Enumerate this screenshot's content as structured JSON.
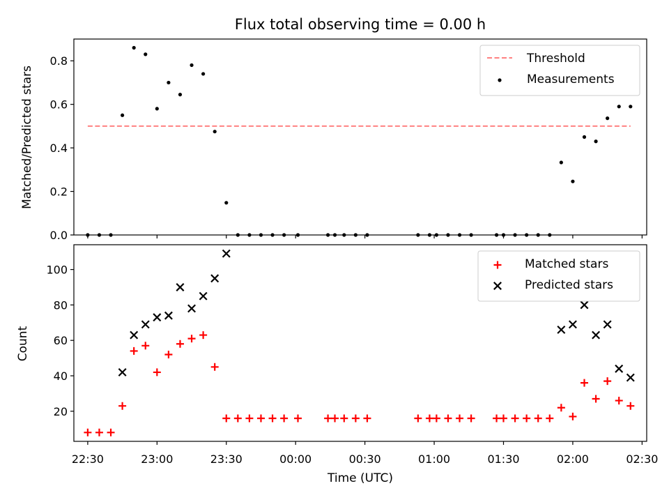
{
  "chart_data": [
    {
      "type": "scatter",
      "title": "Flux total observing time = 0.00 h",
      "xlabel": "",
      "ylabel": "Matched/Predicted stars",
      "xlim": [
        "22:24",
        "02:32"
      ],
      "ylim": [
        0,
        0.9
      ],
      "yticks": [
        0.0,
        0.2,
        0.4,
        0.6,
        0.8
      ],
      "ytick_labels": [
        "0.0",
        "0.2",
        "0.4",
        "0.6",
        "0.8"
      ],
      "legend_position": "top-right",
      "threshold": {
        "name": "Threshold",
        "y": 0.5,
        "x_range": [
          "22:30",
          "02:25"
        ],
        "color": "#ff8080",
        "style": "dashed"
      },
      "series": [
        {
          "name": "Measurements",
          "marker": "dot",
          "color": "#000000",
          "points": [
            [
              "22:30",
              0.0
            ],
            [
              "22:35",
              0.0
            ],
            [
              "22:40",
              0.0
            ],
            [
              "22:45",
              0.55
            ],
            [
              "22:50",
              0.86
            ],
            [
              "22:55",
              0.83
            ],
            [
              "23:00",
              0.58
            ],
            [
              "23:05",
              0.7
            ],
            [
              "23:10",
              0.645
            ],
            [
              "23:15",
              0.78
            ],
            [
              "23:20",
              0.74
            ],
            [
              "23:25",
              0.475
            ],
            [
              "23:30",
              0.148
            ],
            [
              "23:35",
              0.0
            ],
            [
              "23:40",
              0.0
            ],
            [
              "23:45",
              0.0
            ],
            [
              "23:50",
              0.0
            ],
            [
              "23:55",
              0.0
            ],
            [
              "00:01",
              0.0
            ],
            [
              "00:14",
              0.0
            ],
            [
              "00:17",
              0.0
            ],
            [
              "00:21",
              0.0
            ],
            [
              "00:26",
              0.0
            ],
            [
              "00:31",
              0.0
            ],
            [
              "00:53",
              0.0
            ],
            [
              "00:58",
              0.0
            ],
            [
              "01:01",
              0.0
            ],
            [
              "01:06",
              0.0
            ],
            [
              "01:11",
              0.0
            ],
            [
              "01:16",
              0.0
            ],
            [
              "01:27",
              0.0
            ],
            [
              "01:30",
              0.0
            ],
            [
              "01:35",
              0.0
            ],
            [
              "01:40",
              0.0
            ],
            [
              "01:45",
              0.0
            ],
            [
              "01:50",
              0.0
            ],
            [
              "01:55",
              0.333
            ],
            [
              "02:00",
              0.246
            ],
            [
              "02:05",
              0.45
            ],
            [
              "02:10",
              0.43
            ],
            [
              "02:15",
              0.536
            ],
            [
              "02:20",
              0.59
            ],
            [
              "02:25",
              0.59
            ]
          ]
        }
      ]
    },
    {
      "type": "scatter",
      "title": "",
      "xlabel": "Time (UTC)",
      "ylabel": "Count",
      "xlim": [
        "22:24",
        "02:32"
      ],
      "ylim": [
        3,
        114
      ],
      "yticks": [
        20,
        40,
        60,
        80,
        100
      ],
      "ytick_labels": [
        "20",
        "40",
        "60",
        "80",
        "100"
      ],
      "xticks": [
        "22:30",
        "23:00",
        "23:30",
        "00:00",
        "00:30",
        "01:00",
        "01:30",
        "02:00",
        "02:30"
      ],
      "legend_position": "top-right",
      "series": [
        {
          "name": "Matched stars",
          "marker": "plus",
          "color": "#ff0000",
          "points": [
            [
              "22:30",
              8
            ],
            [
              "22:35",
              8
            ],
            [
              "22:40",
              8
            ],
            [
              "22:45",
              23
            ],
            [
              "22:50",
              54
            ],
            [
              "22:55",
              57
            ],
            [
              "23:00",
              42
            ],
            [
              "23:05",
              52
            ],
            [
              "23:10",
              58
            ],
            [
              "23:15",
              61
            ],
            [
              "23:20",
              63
            ],
            [
              "23:25",
              45
            ],
            [
              "23:30",
              16
            ],
            [
              "23:35",
              16
            ],
            [
              "23:40",
              16
            ],
            [
              "23:45",
              16
            ],
            [
              "23:50",
              16
            ],
            [
              "23:55",
              16
            ],
            [
              "00:01",
              16
            ],
            [
              "00:14",
              16
            ],
            [
              "00:17",
              16
            ],
            [
              "00:21",
              16
            ],
            [
              "00:26",
              16
            ],
            [
              "00:31",
              16
            ],
            [
              "00:53",
              16
            ],
            [
              "00:58",
              16
            ],
            [
              "01:01",
              16
            ],
            [
              "01:06",
              16
            ],
            [
              "01:11",
              16
            ],
            [
              "01:16",
              16
            ],
            [
              "01:27",
              16
            ],
            [
              "01:30",
              16
            ],
            [
              "01:35",
              16
            ],
            [
              "01:40",
              16
            ],
            [
              "01:45",
              16
            ],
            [
              "01:50",
              16
            ],
            [
              "01:55",
              22
            ],
            [
              "02:00",
              17
            ],
            [
              "02:05",
              36
            ],
            [
              "02:10",
              27
            ],
            [
              "02:15",
              37
            ],
            [
              "02:20",
              26
            ],
            [
              "02:25",
              23
            ]
          ]
        },
        {
          "name": "Predicted stars",
          "marker": "x",
          "color": "#000000",
          "points": [
            [
              "22:45",
              42
            ],
            [
              "22:50",
              63
            ],
            [
              "22:55",
              69
            ],
            [
              "23:00",
              73
            ],
            [
              "23:05",
              74
            ],
            [
              "23:10",
              90
            ],
            [
              "23:15",
              78
            ],
            [
              "23:20",
              85
            ],
            [
              "23:25",
              95
            ],
            [
              "23:30",
              109
            ],
            [
              "01:55",
              66
            ],
            [
              "02:00",
              69
            ],
            [
              "02:05",
              80
            ],
            [
              "02:10",
              63
            ],
            [
              "02:15",
              69
            ],
            [
              "02:20",
              44
            ],
            [
              "02:25",
              39
            ]
          ]
        }
      ]
    }
  ]
}
